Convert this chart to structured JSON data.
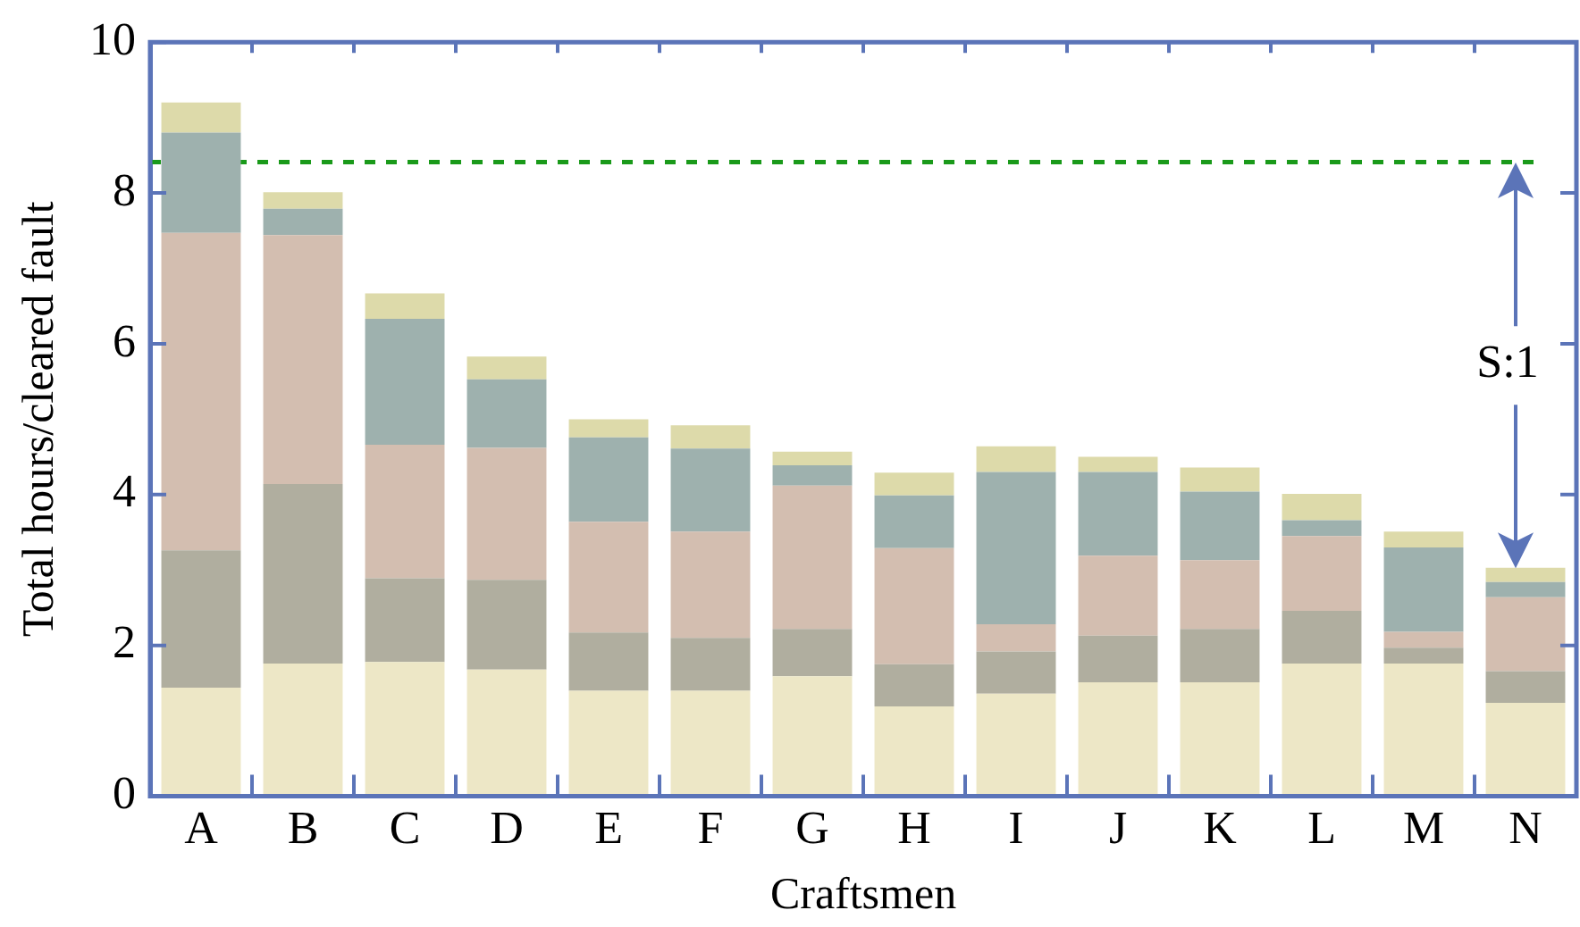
{
  "chart_data": {
    "type": "bar",
    "stacked": true,
    "xlabel": "Craftsmen",
    "ylabel": "Total hours/cleared fault",
    "categories": [
      "A",
      "B",
      "C",
      "D",
      "E",
      "F",
      "G",
      "H",
      "I",
      "J",
      "K",
      "L",
      "M",
      "N"
    ],
    "series": [
      {
        "color": "#ede7c6",
        "values": [
          1.44,
          1.76,
          1.78,
          1.68,
          1.4,
          1.4,
          1.59,
          1.19,
          1.36,
          1.51,
          1.51,
          1.76,
          1.76,
          1.24
        ]
      },
      {
        "color": "#b0ae9f",
        "values": [
          1.82,
          2.38,
          1.11,
          1.19,
          0.77,
          0.7,
          0.63,
          0.56,
          0.56,
          0.62,
          0.71,
          0.7,
          0.21,
          0.42
        ]
      },
      {
        "color": "#d3beb0",
        "values": [
          4.21,
          3.3,
          1.77,
          1.75,
          1.47,
          1.41,
          1.9,
          1.54,
          0.36,
          1.06,
          0.91,
          0.99,
          0.21,
          0.98
        ]
      },
      {
        "color": "#9eb1ae",
        "values": [
          1.33,
          0.35,
          1.67,
          0.91,
          1.12,
          1.1,
          0.27,
          0.7,
          2.02,
          1.11,
          0.91,
          0.21,
          1.12,
          0.2
        ]
      },
      {
        "color": "#dddaaa",
        "values": [
          0.4,
          0.22,
          0.34,
          0.3,
          0.24,
          0.31,
          0.18,
          0.3,
          0.34,
          0.2,
          0.32,
          0.35,
          0.21,
          0.19
        ]
      }
    ],
    "ylim": [
      0,
      10
    ],
    "yticks": [
      0,
      2,
      4,
      6,
      8,
      10
    ],
    "grid": false,
    "legend": false,
    "ref_lines": [
      {
        "axis": "y",
        "value": 8.41,
        "color": "#1a9a1a",
        "line_style": "dashed"
      }
    ],
    "annotations": [
      {
        "text": "S:1",
        "x": "N",
        "y": 3.03
      }
    ]
  }
}
